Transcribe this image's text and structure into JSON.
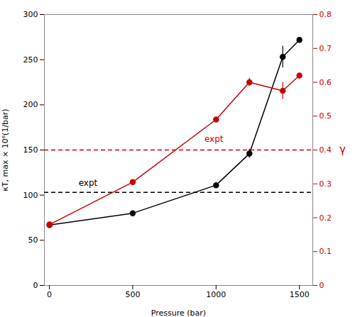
{
  "chart_data": {
    "type": "line",
    "x": [
      1,
      500,
      1000,
      1200,
      1400,
      1500
    ],
    "xlabel": "Pressure (bar)",
    "ylabel": "κT, max × 10⁶(1/bar)",
    "y2label": "γ",
    "xlim": [
      -30,
      1580
    ],
    "xticks": [
      0,
      500,
      1000,
      1500
    ],
    "ylim": [
      0,
      300
    ],
    "yticks": [
      0,
      50,
      100,
      150,
      200,
      250,
      300
    ],
    "y2lim": [
      0,
      0.8
    ],
    "y2ticks": [
      0,
      0.1,
      0.2,
      0.3,
      0.4,
      0.5,
      0.6,
      0.7,
      0.8
    ],
    "series": [
      {
        "color": "#000000",
        "marker": "o",
        "line_style": "solid",
        "values": [
          67,
          80,
          111,
          146,
          253,
          272
        ],
        "errors": [
          0,
          0,
          0,
          5,
          12,
          0
        ]
      },
      {
        "axis": "y2",
        "color": "#cc0000",
        "marker": "o",
        "line_style": "solid",
        "values": [
          0.18,
          0.305,
          0.49,
          0.6,
          0.575,
          0.62
        ],
        "errors": [
          0,
          0,
          0.005,
          0.012,
          0.025,
          0.005
        ]
      }
    ],
    "reference_lines": [
      {
        "value": 103,
        "color": "#000000",
        "line_style": "dashed"
      },
      {
        "value": 0.4,
        "axis": "y2",
        "color": "#cc0000",
        "line_style": "dashed"
      }
    ],
    "annotations": [
      {
        "text": "expt",
        "x": 175,
        "y": 110,
        "color": "#000000"
      },
      {
        "text": "expt",
        "x": 930,
        "y": 0.425,
        "axis": "y2",
        "color": "#cc0000"
      }
    ]
  }
}
